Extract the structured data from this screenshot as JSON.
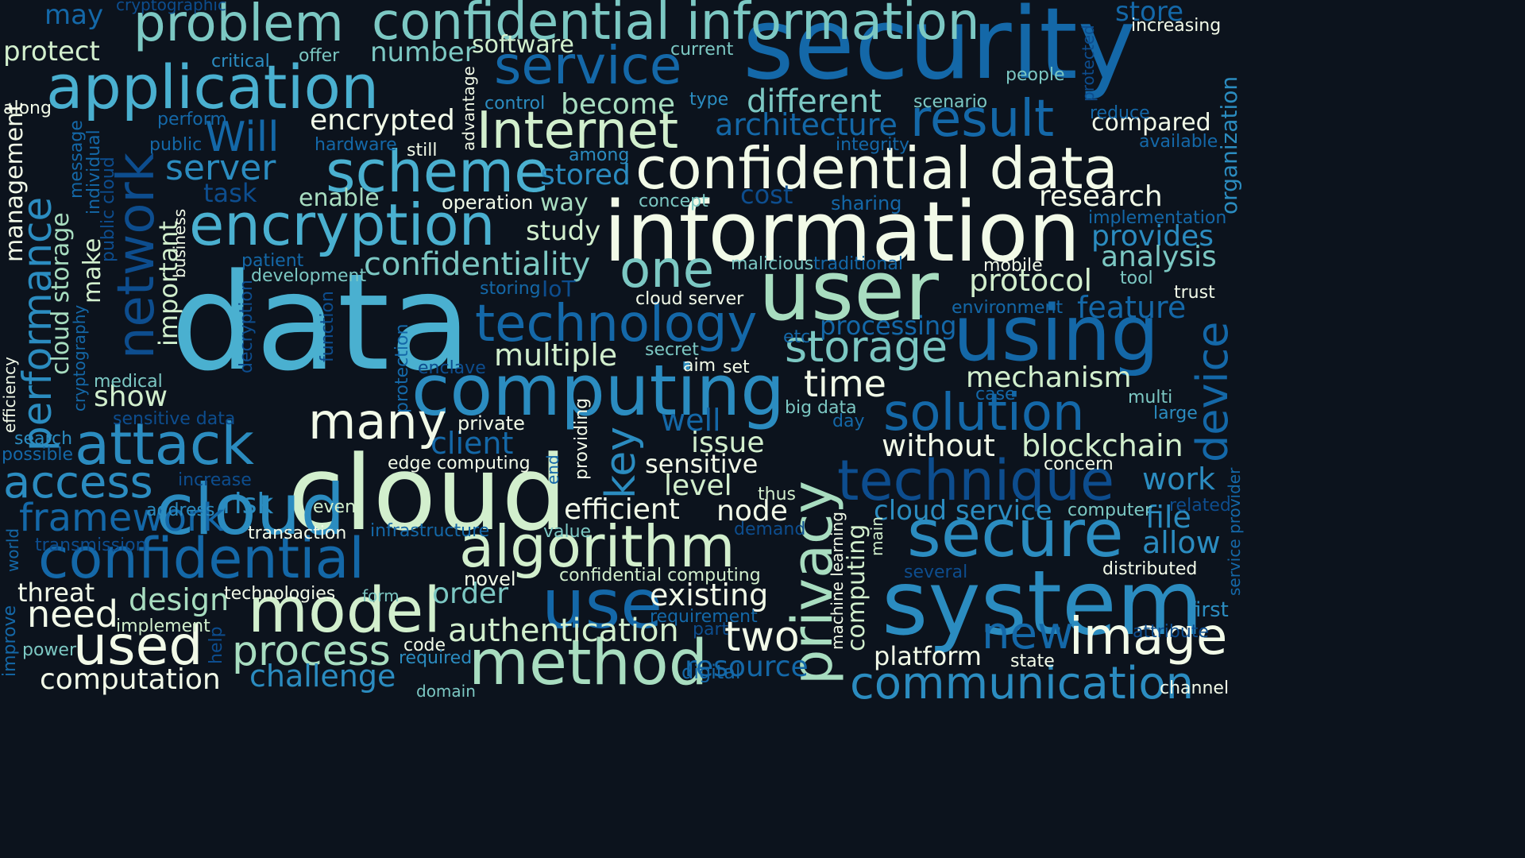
{
  "colors": {
    "background": "#0c131d",
    "c0": "#f2fae8",
    "c1": "#d2efcd",
    "c2": "#a8ddc0",
    "c3": "#7cc8c3",
    "c4": "#4ab0d0",
    "c5": "#2b8cc0",
    "c6": "#1468a8",
    "c7": "#0d4d8e"
  },
  "words": [
    {
      "text": "data",
      "color": "c4"
    },
    {
      "text": "security",
      "color": "c6"
    },
    {
      "text": "cloud",
      "color": "c1"
    },
    {
      "text": "information",
      "color": "c0"
    },
    {
      "text": "confidential data",
      "color": "c0"
    },
    {
      "text": "system",
      "color": "c5"
    },
    {
      "text": "computing",
      "color": "c5"
    },
    {
      "text": "user",
      "color": "c2"
    },
    {
      "text": "cloud",
      "color": "c5"
    },
    {
      "text": "privacy",
      "color": "c2"
    },
    {
      "text": "using",
      "color": "c6"
    },
    {
      "text": "confidential information",
      "color": "c3"
    },
    {
      "text": "application",
      "color": "c4"
    },
    {
      "text": "method",
      "color": "c2"
    },
    {
      "text": "algorithm",
      "color": "c1"
    },
    {
      "text": "model",
      "color": "c1"
    },
    {
      "text": "technique",
      "color": "c7"
    },
    {
      "text": "confidential",
      "color": "c6"
    },
    {
      "text": "secure",
      "color": "c5"
    },
    {
      "text": "encryption",
      "color": "c4"
    },
    {
      "text": "scheme",
      "color": "c4"
    },
    {
      "text": "use",
      "color": "c6"
    },
    {
      "text": "network",
      "color": "c7"
    },
    {
      "text": "performance",
      "color": "c5"
    },
    {
      "text": "problem",
      "color": "c3"
    },
    {
      "text": "technology",
      "color": "c6"
    },
    {
      "text": "attack",
      "color": "c5"
    },
    {
      "text": "service",
      "color": "c6"
    },
    {
      "text": "communication",
      "color": "c5"
    },
    {
      "text": "Internet",
      "color": "c1"
    },
    {
      "text": "result",
      "color": "c6"
    },
    {
      "text": "solution",
      "color": "c6"
    },
    {
      "text": "image",
      "color": "c0"
    },
    {
      "text": "used",
      "color": "c0"
    },
    {
      "text": "process",
      "color": "c2"
    },
    {
      "text": "many",
      "color": "c0"
    },
    {
      "text": "storage",
      "color": "c3"
    },
    {
      "text": "one",
      "color": "c3"
    },
    {
      "text": "access",
      "color": "c5"
    },
    {
      "text": "framework",
      "color": "c6"
    },
    {
      "text": "device",
      "color": "c6"
    },
    {
      "text": "key",
      "color": "c5"
    },
    {
      "text": "new",
      "color": "c6"
    },
    {
      "text": "Will",
      "color": "c6"
    },
    {
      "text": "two",
      "color": "c0"
    },
    {
      "text": "need",
      "color": "c0"
    },
    {
      "text": "time",
      "color": "c0"
    },
    {
      "text": "server",
      "color": "c5"
    },
    {
      "text": "confidentiality",
      "color": "c3"
    },
    {
      "text": "authentication",
      "color": "c1"
    },
    {
      "text": "different",
      "color": "c3"
    },
    {
      "text": "existing",
      "color": "c0"
    },
    {
      "text": "architecture",
      "color": "c6"
    },
    {
      "text": "computation",
      "color": "c0"
    },
    {
      "text": "challenge",
      "color": "c5"
    },
    {
      "text": "protocol",
      "color": "c1"
    },
    {
      "text": "multiple",
      "color": "c1"
    },
    {
      "text": "provides",
      "color": "c5"
    },
    {
      "text": "analysis",
      "color": "c3"
    },
    {
      "text": "efficient",
      "color": "c0"
    },
    {
      "text": "node",
      "color": "c0"
    },
    {
      "text": "blockchain",
      "color": "c1"
    },
    {
      "text": "without",
      "color": "c0"
    },
    {
      "text": "cloud service",
      "color": "c5"
    },
    {
      "text": "well",
      "color": "c6"
    },
    {
      "text": "issue",
      "color": "c1"
    },
    {
      "text": "design",
      "color": "c2"
    },
    {
      "text": "become",
      "color": "c2"
    },
    {
      "text": "encrypted",
      "color": "c0"
    },
    {
      "text": "research",
      "color": "c0"
    },
    {
      "text": "study",
      "color": "c1"
    },
    {
      "text": "stored",
      "color": "c5"
    },
    {
      "text": "processing",
      "color": "c6"
    },
    {
      "text": "feature",
      "color": "c6"
    },
    {
      "text": "mechanism",
      "color": "c1"
    },
    {
      "text": "level",
      "color": "c1"
    },
    {
      "text": "sensitive",
      "color": "c0"
    },
    {
      "text": "order",
      "color": "c3"
    },
    {
      "text": "show",
      "color": "c1"
    },
    {
      "text": "risk",
      "color": "c5"
    },
    {
      "text": "threat",
      "color": "c0"
    },
    {
      "text": "work",
      "color": "c5"
    },
    {
      "text": "allow",
      "color": "c5"
    },
    {
      "text": "file",
      "color": "c5"
    },
    {
      "text": "platform",
      "color": "c0"
    },
    {
      "text": "client",
      "color": "c6"
    },
    {
      "text": "store",
      "color": "c6"
    },
    {
      "text": "resource",
      "color": "c6"
    },
    {
      "text": "number",
      "color": "c3"
    },
    {
      "text": "software",
      "color": "c1"
    },
    {
      "text": "compared",
      "color": "c0"
    },
    {
      "text": "protect",
      "color": "c1"
    },
    {
      "text": "may",
      "color": "c6"
    },
    {
      "text": "enable",
      "color": "c2"
    },
    {
      "text": "task",
      "color": "c7"
    },
    {
      "text": "way",
      "color": "c2"
    },
    {
      "text": "cost",
      "color": "c7"
    },
    {
      "text": "IoT",
      "color": "c7"
    },
    {
      "text": "make",
      "color": "c1"
    },
    {
      "text": "important",
      "color": "c1"
    },
    {
      "text": "cloud storage",
      "color": "c2"
    },
    {
      "text": "management",
      "color": "c0"
    },
    {
      "text": "organization",
      "color": "c5"
    },
    {
      "text": "computing",
      "color": "c1"
    },
    {
      "text": "first",
      "color": "c5"
    },
    {
      "text": "increasing",
      "color": "c0"
    },
    {
      "text": "critical",
      "color": "c5"
    },
    {
      "text": "offer",
      "color": "c3"
    },
    {
      "text": "current",
      "color": "c3"
    },
    {
      "text": "people",
      "color": "c3"
    },
    {
      "text": "cryptographic",
      "color": "c7"
    },
    {
      "text": "control",
      "color": "c5"
    },
    {
      "text": "type",
      "color": "c5"
    },
    {
      "text": "scenario",
      "color": "c3"
    },
    {
      "text": "perform",
      "color": "c6"
    },
    {
      "text": "along",
      "color": "c0"
    },
    {
      "text": "public",
      "color": "c6"
    },
    {
      "text": "hardware",
      "color": "c6"
    },
    {
      "text": "still",
      "color": "c0"
    },
    {
      "text": "among",
      "color": "c5"
    },
    {
      "text": "integrity",
      "color": "c6"
    },
    {
      "text": "reduce",
      "color": "c6"
    },
    {
      "text": "available",
      "color": "c6"
    },
    {
      "text": "operation",
      "color": "c0"
    },
    {
      "text": "concept",
      "color": "c3"
    },
    {
      "text": "sharing",
      "color": "c6"
    },
    {
      "text": "implementation",
      "color": "c6"
    },
    {
      "text": "patient",
      "color": "c6"
    },
    {
      "text": "development",
      "color": "c3"
    },
    {
      "text": "malicious",
      "color": "c3"
    },
    {
      "text": "traditional",
      "color": "c6"
    },
    {
      "text": "mobile",
      "color": "c0"
    },
    {
      "text": "tool",
      "color": "c3"
    },
    {
      "text": "storing",
      "color": "c6"
    },
    {
      "text": "cloud server",
      "color": "c0"
    },
    {
      "text": "trust",
      "color": "c0"
    },
    {
      "text": "environment",
      "color": "c6"
    },
    {
      "text": "secret",
      "color": "c3"
    },
    {
      "text": "etc",
      "color": "c6"
    },
    {
      "text": "aim",
      "color": "c0"
    },
    {
      "text": "set",
      "color": "c0"
    },
    {
      "text": "medical",
      "color": "c3"
    },
    {
      "text": "enclave",
      "color": "c7"
    },
    {
      "text": "case",
      "color": "c6"
    },
    {
      "text": "multi",
      "color": "c3"
    },
    {
      "text": "big data",
      "color": "c3"
    },
    {
      "text": "day",
      "color": "c6"
    },
    {
      "text": "large",
      "color": "c5"
    },
    {
      "text": "sensitive data",
      "color": "c7"
    },
    {
      "text": "private",
      "color": "c0"
    },
    {
      "text": "search",
      "color": "c5"
    },
    {
      "text": "possible",
      "color": "c6"
    },
    {
      "text": "edge computing",
      "color": "c0"
    },
    {
      "text": "concern",
      "color": "c0"
    },
    {
      "text": "increase",
      "color": "c7"
    },
    {
      "text": "thus",
      "color": "c1"
    },
    {
      "text": "address",
      "color": "c5"
    },
    {
      "text": "even",
      "color": "c1"
    },
    {
      "text": "related",
      "color": "c7"
    },
    {
      "text": "computer",
      "color": "c3"
    },
    {
      "text": "transaction",
      "color": "c0"
    },
    {
      "text": "infrastructure",
      "color": "c6"
    },
    {
      "text": "value",
      "color": "c3"
    },
    {
      "text": "demand",
      "color": "c7"
    },
    {
      "text": "transmission",
      "color": "c7"
    },
    {
      "text": "several",
      "color": "c7"
    },
    {
      "text": "distributed",
      "color": "c0"
    },
    {
      "text": "novel",
      "color": "c0"
    },
    {
      "text": "confidential computing",
      "color": "c1"
    },
    {
      "text": "technologies",
      "color": "c0"
    },
    {
      "text": "form",
      "color": "c3"
    },
    {
      "text": "requirement",
      "color": "c6"
    },
    {
      "text": "implement",
      "color": "c1"
    },
    {
      "text": "part",
      "color": "c7"
    },
    {
      "text": "attribute",
      "color": "c7"
    },
    {
      "text": "power",
      "color": "c3"
    },
    {
      "text": "code",
      "color": "c0"
    },
    {
      "text": "required",
      "color": "c5"
    },
    {
      "text": "digital",
      "color": "c6"
    },
    {
      "text": "state",
      "color": "c0"
    },
    {
      "text": "domain",
      "color": "c3"
    },
    {
      "text": "channel",
      "color": "c0"
    },
    {
      "text": "message",
      "color": "c6"
    },
    {
      "text": "individual",
      "color": "c6"
    },
    {
      "text": "public cloud",
      "color": "c7"
    },
    {
      "text": "business",
      "color": "c0"
    },
    {
      "text": "advantage",
      "color": "c0"
    },
    {
      "text": "cryptography",
      "color": "c6"
    },
    {
      "text": "efficiency",
      "color": "c0"
    },
    {
      "text": "decryption",
      "color": "c7"
    },
    {
      "text": "function",
      "color": "c7"
    },
    {
      "text": "protection",
      "color": "c6"
    },
    {
      "text": "providing",
      "color": "c0"
    },
    {
      "text": "end",
      "color": "c6"
    },
    {
      "text": "machine learning",
      "color": "c0"
    },
    {
      "text": "main",
      "color": "c1"
    },
    {
      "text": "world",
      "color": "c6"
    },
    {
      "text": "improve",
      "color": "c6"
    },
    {
      "text": "help",
      "color": "c7"
    },
    {
      "text": "protected",
      "color": "c7"
    },
    {
      "text": "service provider",
      "color": "c6"
    }
  ]
}
